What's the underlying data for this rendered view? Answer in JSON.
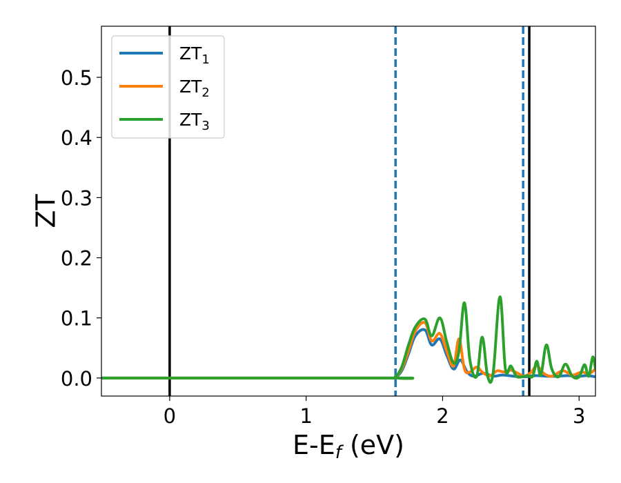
{
  "chart_data": {
    "type": "line",
    "title": "",
    "xlabel": "E-E_f (eV)",
    "xlabel_parts": {
      "main": "E-E",
      "sub": "f",
      "unit": " (eV)"
    },
    "ylabel": "ZT",
    "xlim": [
      -0.5,
      3.12
    ],
    "ylim": [
      -0.03,
      0.585
    ],
    "xticks": [
      0,
      1,
      2,
      3
    ],
    "xtick_labels": [
      "0",
      "1",
      "2",
      "3"
    ],
    "yticks": [
      0.0,
      0.1,
      0.2,
      0.3,
      0.4,
      0.5
    ],
    "ytick_labels": [
      "0.0",
      "0.1",
      "0.2",
      "0.3",
      "0.4",
      "0.5"
    ],
    "grid": false,
    "legend_position": "top-left",
    "series": [
      {
        "name": "ZT_1",
        "label_main": "ZT",
        "label_sub": "1",
        "color": "#1f77b4",
        "x": [
          -0.5,
          1.6,
          1.65,
          1.7,
          1.75,
          1.8,
          1.87,
          1.92,
          1.98,
          2.03,
          2.08,
          2.13,
          2.18,
          2.23,
          2.3,
          2.37,
          2.44,
          2.52,
          2.6,
          2.68,
          2.76,
          2.84,
          2.92,
          3.0,
          3.06,
          3.12
        ],
        "y": [
          0.0,
          0.0,
          0.001,
          0.012,
          0.04,
          0.07,
          0.08,
          0.055,
          0.065,
          0.038,
          0.015,
          0.03,
          0.01,
          0.003,
          0.008,
          0.003,
          0.005,
          0.003,
          0.002,
          0.004,
          0.003,
          0.003,
          0.004,
          0.003,
          0.004,
          0.002
        ]
      },
      {
        "name": "ZT_2",
        "label_main": "ZT",
        "label_sub": "2",
        "color": "#ff7f0e",
        "x": [
          -0.5,
          1.6,
          1.65,
          1.7,
          1.75,
          1.8,
          1.87,
          1.92,
          1.98,
          2.03,
          2.08,
          2.12,
          2.16,
          2.2,
          2.25,
          2.3,
          2.35,
          2.4,
          2.45,
          2.5,
          2.55,
          2.6,
          2.65,
          2.69,
          2.74,
          2.8,
          2.88,
          2.95,
          3.02,
          3.07,
          3.12
        ],
        "y": [
          0.0,
          0.0,
          0.001,
          0.015,
          0.045,
          0.078,
          0.092,
          0.062,
          0.074,
          0.045,
          0.02,
          0.065,
          0.015,
          0.01,
          0.018,
          0.008,
          0.004,
          0.012,
          0.01,
          0.013,
          0.008,
          0.003,
          0.01,
          0.02,
          0.008,
          0.003,
          0.012,
          0.005,
          0.01,
          0.007,
          0.015
        ]
      },
      {
        "name": "ZT_3",
        "label_main": "ZT",
        "label_sub": "3",
        "color": "#2ca02c",
        "x": [
          -0.5,
          1.6,
          1.65,
          1.7,
          1.75,
          1.8,
          1.87,
          1.92,
          1.98,
          2.03,
          2.08,
          2.12,
          2.16,
          2.2,
          2.25,
          2.29,
          2.33,
          2.37,
          2.42,
          2.46,
          2.5,
          2.54,
          2.58,
          2.62,
          2.66,
          2.69,
          2.72,
          2.76,
          2.8,
          2.85,
          2.9,
          2.95,
          3.0,
          3.04,
          3.07,
          3.1,
          3.12
        ],
        "y": [
          0.0,
          0.0,
          0.001,
          0.018,
          0.055,
          0.085,
          0.098,
          0.07,
          0.1,
          0.06,
          0.025,
          0.045,
          0.125,
          0.03,
          0.003,
          0.068,
          0.003,
          0.008,
          0.135,
          0.015,
          0.02,
          0.003,
          0.002,
          0.004,
          0.003,
          0.028,
          0.005,
          0.055,
          0.015,
          0.002,
          0.023,
          0.003,
          0.002,
          0.022,
          0.003,
          0.035,
          0.015
        ]
      }
    ],
    "vlines": [
      {
        "x": 0.0,
        "style": "solid",
        "color": "#000000"
      },
      {
        "x": 1.655,
        "style": "dashed",
        "color": "#1f77b4"
      },
      {
        "x": 2.59,
        "style": "dashed",
        "color": "#1f77b4"
      },
      {
        "x": 2.635,
        "style": "solid",
        "color": "#000000"
      }
    ]
  }
}
